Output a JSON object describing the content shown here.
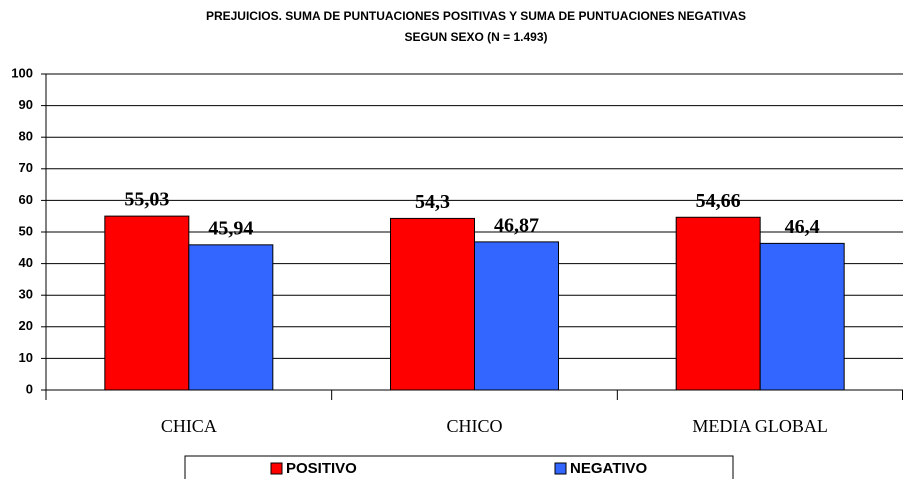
{
  "chart_data": {
    "type": "bar",
    "title": [
      "PREJUICIOS. SUMA DE PUNTUACIONES POSITIVAS Y SUMA DE PUNTUACIONES NEGATIVAS",
      "SEGUN SEXO (N = 1.493)"
    ],
    "categories": [
      "CHICA",
      "CHICO",
      "MEDIA GLOBAL"
    ],
    "series": [
      {
        "name": "POSITIVO",
        "color": "#ff0000",
        "values": [
          55.03,
          54.3,
          54.66
        ],
        "value_labels": [
          "55,03",
          "54,3",
          "54,66"
        ]
      },
      {
        "name": "NEGATIVO",
        "color": "#3366ff",
        "values": [
          45.94,
          46.87,
          46.4
        ],
        "value_labels": [
          "45,94",
          "46,87",
          "46,4"
        ]
      }
    ],
    "ylim": [
      0,
      100
    ],
    "yticks": [
      0,
      10,
      20,
      30,
      40,
      50,
      60,
      70,
      80,
      90,
      100
    ],
    "grid": true,
    "legend": "bottom"
  }
}
